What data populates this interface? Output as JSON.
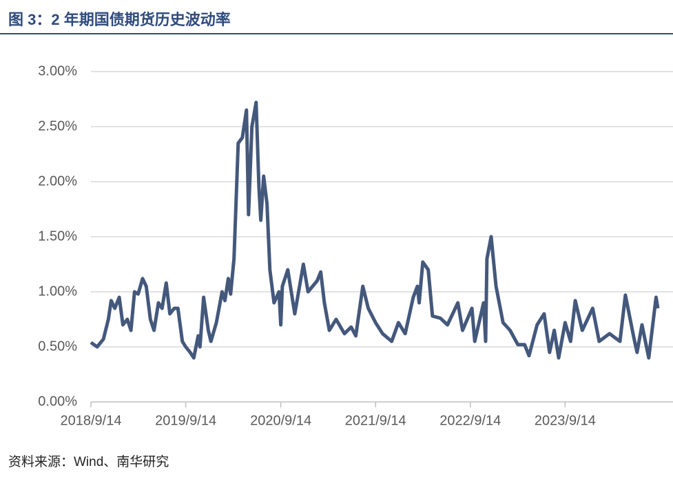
{
  "chart_data": {
    "type": "line",
    "title": "图 3：2 年期国债期货历史波动率",
    "source": "资料来源：Wind、南华研究",
    "color": "#44587c",
    "grid": true,
    "x": [
      "2018/9/14",
      "2018/10/8",
      "2018/11/1",
      "2018/11/20",
      "2018/12/1",
      "2018/12/15",
      "2019/1/1",
      "2019/1/15",
      "2019/2/1",
      "2019/2/15",
      "2019/3/1",
      "2019/3/15",
      "2019/4/1",
      "2019/4/15",
      "2019/5/1",
      "2019/5/15",
      "2019/6/1",
      "2019/6/15",
      "2019/7/1",
      "2019/7/15",
      "2019/8/1",
      "2019/8/15",
      "2019/9/1",
      "2019/9/14",
      "2019/10/1",
      "2019/10/15",
      "2019/11/1",
      "2019/11/8",
      "2019/11/22",
      "2019/12/10",
      "2019/12/20",
      "2020/1/10",
      "2020/2/1",
      "2020/2/12",
      "2020/2/25",
      "2020/3/5",
      "2020/3/18",
      "2020/4/3",
      "2020/4/19",
      "2020/5/5",
      "2020/5/13",
      "2020/5/26",
      "2020/6/11",
      "2020/6/22",
      "2020/6/29",
      "2020/7/10",
      "2020/7/23",
      "2020/8/3",
      "2020/8/19",
      "2020/9/7",
      "2020/9/14",
      "2020/9/20",
      "2020/10/11",
      "2020/11/7",
      "2020/12/10",
      "2020/12/28",
      "2021/2/1",
      "2021/2/15",
      "2021/3/1",
      "2021/3/20",
      "2021/4/15",
      "2021/5/17",
      "2021/6/12",
      "2021/6/30",
      "2021/7/27",
      "2021/8/17",
      "2021/9/14",
      "2021/10/11",
      "2021/11/15",
      "2021/12/11",
      "2022/1/6",
      "2022/2/6",
      "2022/2/22",
      "2022/3/1",
      "2022/3/15",
      "2022/4/5",
      "2022/4/21",
      "2022/5/22",
      "2022/6/18",
      "2022/7/28",
      "2022/8/15",
      "2022/9/20",
      "2022/10/1",
      "2022/11/4",
      "2022/11/12",
      "2022/11/17",
      "2022/12/3",
      "2022/12/22",
      "2023/1/18",
      "2023/2/14",
      "2023/3/16",
      "2023/4/11",
      "2023/4/28",
      "2023/5/29",
      "2023/6/25",
      "2023/7/16",
      "2023/8/3",
      "2023/8/20",
      "2023/9/14",
      "2023/10/5",
      "2023/10/23",
      "2023/11/19",
      "2023/12/29",
      "2024/1/23",
      "2024/3/3",
      "2024/4/12",
      "2024/5/3",
      "2024/6/3",
      "2024/6/17",
      "2024/7/6",
      "2024/8/1",
      "2024/8/29",
      "2024/9/5"
    ],
    "values": [
      0.54,
      0.5,
      0.57,
      0.75,
      0.92,
      0.85,
      0.95,
      0.7,
      0.75,
      0.65,
      1.0,
      0.98,
      1.12,
      1.05,
      0.75,
      0.65,
      0.9,
      0.85,
      1.08,
      0.8,
      0.85,
      0.85,
      0.55,
      0.5,
      0.45,
      0.4,
      0.6,
      0.5,
      0.95,
      0.65,
      0.55,
      0.72,
      1.0,
      0.92,
      1.12,
      0.98,
      1.3,
      2.35,
      2.4,
      2.65,
      1.7,
      2.5,
      2.72,
      1.95,
      1.65,
      2.05,
      1.8,
      1.2,
      0.9,
      1.0,
      0.7,
      1.05,
      1.2,
      0.8,
      1.25,
      1.0,
      1.1,
      1.18,
      0.9,
      0.65,
      0.75,
      0.62,
      0.68,
      0.6,
      1.05,
      0.85,
      0.72,
      0.62,
      0.55,
      0.72,
      0.62,
      0.95,
      1.05,
      0.9,
      1.27,
      1.2,
      0.78,
      0.76,
      0.7,
      0.9,
      0.65,
      0.85,
      0.55,
      0.9,
      0.55,
      1.3,
      1.5,
      1.05,
      0.72,
      0.65,
      0.52,
      0.52,
      0.42,
      0.7,
      0.8,
      0.45,
      0.65,
      0.4,
      0.72,
      0.55,
      0.92,
      0.65,
      0.85,
      0.55,
      0.62,
      0.55,
      0.97,
      0.6,
      0.45,
      0.7,
      0.4,
      0.95,
      0.85
    ],
    "xlim": [
      "2018/9/14",
      "2024/9/5"
    ],
    "xticks": [
      "2018/9/14",
      "2019/9/14",
      "2020/9/14",
      "2021/9/14",
      "2022/9/14",
      "2023/9/14"
    ],
    "ylim": [
      0,
      3
    ],
    "yticks": [
      {
        "value": 0,
        "label": "0.00%"
      },
      {
        "value": 0.5,
        "label": "0.50%"
      },
      {
        "value": 1,
        "label": "1.00%"
      },
      {
        "value": 1.5,
        "label": "1.50%"
      },
      {
        "value": 2,
        "label": "2.00%"
      },
      {
        "value": 2.5,
        "label": "2.50%"
      },
      {
        "value": 3,
        "label": "3.00%"
      }
    ]
  }
}
